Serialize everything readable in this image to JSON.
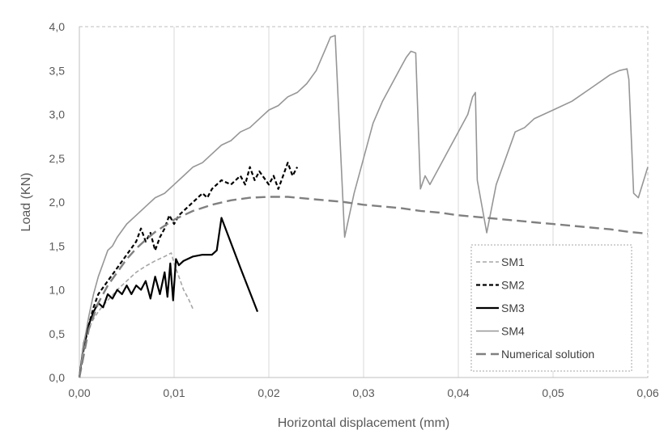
{
  "chart_data": {
    "type": "line",
    "title": "",
    "xlabel": "Horizontal displacement (mm)",
    "ylabel": "Load (KN)",
    "xlim": [
      0,
      0.06
    ],
    "ylim": [
      0,
      4.0
    ],
    "x_ticks": [
      0.0,
      0.01,
      0.02,
      0.03,
      0.04,
      0.05,
      0.06
    ],
    "x_tick_labels": [
      "0,00",
      "0,01",
      "0,02",
      "0,03",
      "0,04",
      "0,05",
      "0,06"
    ],
    "y_ticks": [
      0.0,
      0.5,
      1.0,
      1.5,
      2.0,
      2.5,
      3.0,
      3.5,
      4.0
    ],
    "y_tick_labels": [
      "0,0",
      "0,5",
      "1,0",
      "1,5",
      "2,0",
      "2,5",
      "3,0",
      "3,5",
      "4,0"
    ],
    "grid": "vertical",
    "legend_position": "bottom-right",
    "series": [
      {
        "name": "SM1",
        "color": "#a6a6a6",
        "dash": "dashed",
        "x": [
          0.0,
          0.0003,
          0.0006,
          0.001,
          0.0014,
          0.0018,
          0.0022,
          0.003,
          0.004,
          0.005,
          0.006,
          0.007,
          0.008,
          0.009,
          0.0097,
          0.01,
          0.0105,
          0.011,
          0.0115,
          0.012
        ],
        "y": [
          0.0,
          0.25,
          0.42,
          0.55,
          0.65,
          0.72,
          0.78,
          0.88,
          1.0,
          1.1,
          1.2,
          1.27,
          1.33,
          1.38,
          1.42,
          1.3,
          1.15,
          1.0,
          0.9,
          0.78
        ]
      },
      {
        "name": "SM2",
        "color": "#000000",
        "dash": "dashed",
        "x": [
          0.0,
          0.0005,
          0.001,
          0.0015,
          0.002,
          0.003,
          0.004,
          0.005,
          0.006,
          0.0065,
          0.007,
          0.0075,
          0.008,
          0.0085,
          0.009,
          0.0095,
          0.01,
          0.0105,
          0.011,
          0.012,
          0.013,
          0.0135,
          0.014,
          0.015,
          0.016,
          0.017,
          0.0175,
          0.018,
          0.0185,
          0.019,
          0.02,
          0.0205,
          0.021,
          0.0215,
          0.022,
          0.0225,
          0.023
        ],
        "y": [
          0.0,
          0.35,
          0.6,
          0.8,
          0.95,
          1.1,
          1.25,
          1.4,
          1.55,
          1.7,
          1.55,
          1.65,
          1.45,
          1.6,
          1.7,
          1.85,
          1.75,
          1.85,
          1.9,
          2.0,
          2.1,
          2.05,
          2.15,
          2.25,
          2.2,
          2.3,
          2.2,
          2.4,
          2.25,
          2.35,
          2.2,
          2.3,
          2.15,
          2.3,
          2.45,
          2.3,
          2.4
        ]
      },
      {
        "name": "SM3",
        "color": "#000000",
        "dash": "solid",
        "x": [
          0.0,
          0.0005,
          0.001,
          0.0015,
          0.002,
          0.0025,
          0.003,
          0.0035,
          0.004,
          0.0045,
          0.005,
          0.0055,
          0.006,
          0.0065,
          0.007,
          0.0075,
          0.008,
          0.0085,
          0.009,
          0.0093,
          0.0096,
          0.0099,
          0.0102,
          0.0105,
          0.011,
          0.012,
          0.013,
          0.014,
          0.0145,
          0.015,
          0.017,
          0.0188
        ],
        "y": [
          0.0,
          0.4,
          0.6,
          0.75,
          0.85,
          0.8,
          0.95,
          0.9,
          1.0,
          0.95,
          1.05,
          0.95,
          1.05,
          1.0,
          1.1,
          0.9,
          1.15,
          0.95,
          1.2,
          0.92,
          1.3,
          0.88,
          1.35,
          1.28,
          1.33,
          1.38,
          1.4,
          1.4,
          1.45,
          1.82,
          1.25,
          0.75
        ]
      },
      {
        "name": "SM4",
        "color": "#969696",
        "dash": "solid",
        "x": [
          0.0,
          0.0005,
          0.001,
          0.0015,
          0.002,
          0.0025,
          0.003,
          0.0035,
          0.004,
          0.005,
          0.006,
          0.007,
          0.008,
          0.009,
          0.01,
          0.011,
          0.012,
          0.013,
          0.014,
          0.015,
          0.016,
          0.017,
          0.018,
          0.019,
          0.02,
          0.021,
          0.022,
          0.023,
          0.024,
          0.025,
          0.026,
          0.0265,
          0.027,
          0.028,
          0.029,
          0.03,
          0.031,
          0.032,
          0.033,
          0.034,
          0.0345,
          0.035,
          0.0355,
          0.036,
          0.0365,
          0.037,
          0.038,
          0.039,
          0.04,
          0.041,
          0.0415,
          0.0418,
          0.042,
          0.043,
          0.044,
          0.045,
          0.046,
          0.047,
          0.048,
          0.05,
          0.052,
          0.054,
          0.056,
          0.057,
          0.0578,
          0.058,
          0.0585,
          0.059,
          0.06
        ],
        "y": [
          0.0,
          0.4,
          0.7,
          0.95,
          1.15,
          1.3,
          1.45,
          1.5,
          1.6,
          1.75,
          1.85,
          1.95,
          2.05,
          2.1,
          2.2,
          2.3,
          2.4,
          2.45,
          2.55,
          2.65,
          2.7,
          2.8,
          2.85,
          2.95,
          3.05,
          3.1,
          3.2,
          3.25,
          3.35,
          3.5,
          3.75,
          3.88,
          3.9,
          1.6,
          2.1,
          2.5,
          2.9,
          3.15,
          3.35,
          3.55,
          3.65,
          3.72,
          3.7,
          2.15,
          2.3,
          2.2,
          2.4,
          2.6,
          2.8,
          3.0,
          3.2,
          3.25,
          2.25,
          1.65,
          2.2,
          2.5,
          2.8,
          2.85,
          2.95,
          3.05,
          3.15,
          3.3,
          3.45,
          3.5,
          3.52,
          3.4,
          2.1,
          2.05,
          2.4
        ]
      },
      {
        "name": "Numerical solution",
        "color": "#808080",
        "dash": "long-dashed",
        "x": [
          0.0,
          0.001,
          0.002,
          0.003,
          0.004,
          0.005,
          0.006,
          0.007,
          0.008,
          0.009,
          0.01,
          0.012,
          0.014,
          0.016,
          0.018,
          0.02,
          0.022,
          0.024,
          0.026,
          0.028,
          0.03,
          0.032,
          0.034,
          0.036,
          0.038,
          0.04,
          0.042,
          0.044,
          0.046,
          0.048,
          0.05,
          0.052,
          0.054,
          0.056,
          0.058,
          0.06
        ],
        "y": [
          0.0,
          0.55,
          0.85,
          1.05,
          1.2,
          1.35,
          1.47,
          1.57,
          1.66,
          1.73,
          1.8,
          1.9,
          1.97,
          2.02,
          2.05,
          2.06,
          2.06,
          2.04,
          2.02,
          2.0,
          1.97,
          1.95,
          1.93,
          1.9,
          1.88,
          1.85,
          1.83,
          1.81,
          1.79,
          1.77,
          1.75,
          1.73,
          1.71,
          1.69,
          1.66,
          1.64
        ]
      }
    ]
  }
}
